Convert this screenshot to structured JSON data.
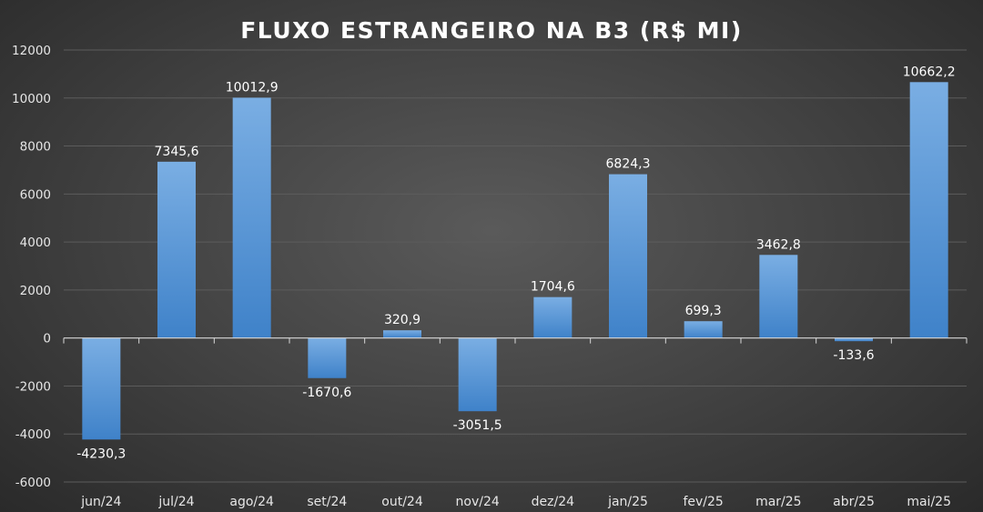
{
  "chart_data": {
    "type": "bar",
    "title": "FLUXO ESTRANGEIRO NA B3 (R$ MI)",
    "categories": [
      "jun/24",
      "jul/24",
      "ago/24",
      "set/24",
      "out/24",
      "nov/24",
      "dez/24",
      "jan/25",
      "fev/25",
      "mar/25",
      "abr/25",
      "mai/25"
    ],
    "values": [
      -4230.3,
      7345.6,
      10012.9,
      -1670.6,
      320.9,
      -3051.5,
      1704.6,
      6824.3,
      699.3,
      3462.8,
      -133.6,
      10662.2
    ],
    "data_labels": [
      "-4230,3",
      "7345,6",
      "10012,9",
      "-1670,6",
      "320,9",
      "-3051,5",
      "1704,6",
      "6824,3",
      "699,3",
      "3462,8",
      "-133,6",
      "10662,2"
    ],
    "y_ticks": [
      "12000",
      "10000",
      "8000",
      "6000",
      "4000",
      "2000",
      "0",
      "-2000",
      "-4000",
      "-6000"
    ],
    "ylim": [
      -6000,
      12000
    ],
    "grid": true,
    "legend": "none",
    "colors": {
      "bar_top": "#7aaee3",
      "bar_bottom": "#3f82c9",
      "grid": "#5c5c5c",
      "axis": "#d9d9d9"
    }
  }
}
